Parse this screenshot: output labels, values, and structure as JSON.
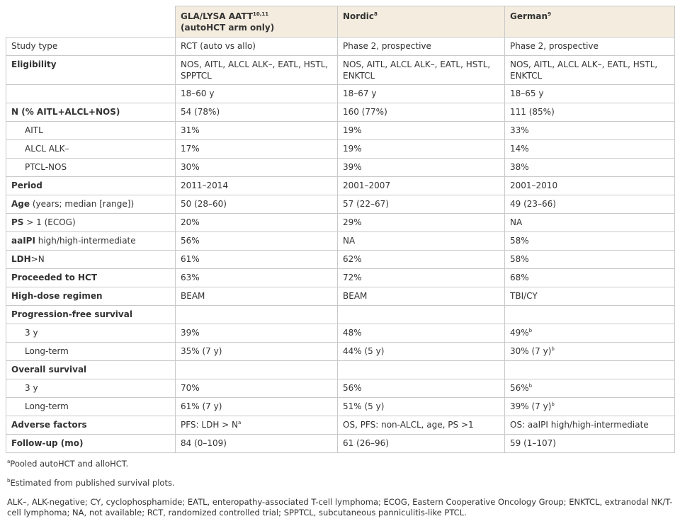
{
  "table": {
    "columns": [
      {
        "text": "GLA/LYSA AATT",
        "sup": "10,11",
        "sub": "(autoHCT arm only)"
      },
      {
        "text": "Nordic",
        "sup": "8"
      },
      {
        "text": "German",
        "sup": "9"
      }
    ],
    "rows": [
      {
        "label": {
          "text": "Study type"
        },
        "cells": [
          "RCT (auto vs allo)",
          "Phase 2, prospective",
          "Phase 2, prospective"
        ]
      },
      {
        "label": {
          "bold": "Eligibility"
        },
        "cells": [
          "NOS, AITL, ALCL ALK–, EATL, HSTL, SPPTCL",
          "NOS, AITL, ALCL ALK–, EATL, HSTL, ENKTCL",
          "NOS, AITL, ALCL ALK–, EATL, HSTL, ENKTCL"
        ]
      },
      {
        "cells": [
          "18–60 y",
          "18–67 y",
          "18–65 y"
        ]
      },
      {
        "label": {
          "bold": "N (% AITL+ALCL+NOS)"
        },
        "cells": [
          "54 (78%)",
          "160 (77%)",
          "111 (85%)"
        ]
      },
      {
        "label": {
          "text": "AITL",
          "indent": true
        },
        "cells": [
          "31%",
          "19%",
          "33%"
        ]
      },
      {
        "label": {
          "text": "ALCL ALK–",
          "indent": true
        },
        "cells": [
          "17%",
          "19%",
          "14%"
        ]
      },
      {
        "label": {
          "text": "PTCL-NOS",
          "indent": true
        },
        "cells": [
          "30%",
          "39%",
          "38%"
        ]
      },
      {
        "label": {
          "bold": "Period"
        },
        "cells": [
          "2011–2014",
          "2001–2007",
          "2001–2010"
        ]
      },
      {
        "label": {
          "bold": "Age",
          "text": " (years; median [range])"
        },
        "cells": [
          "50 (28–60)",
          "57 (22–67)",
          "49 (23–66)"
        ]
      },
      {
        "label": {
          "bold": "PS",
          "text": " > 1 (ECOG)"
        },
        "cells": [
          "20%",
          "29%",
          "NA"
        ]
      },
      {
        "label": {
          "bold": "aaIPI",
          "text": " high/high-intermediate"
        },
        "cells": [
          "56%",
          "NA",
          "58%"
        ]
      },
      {
        "label": {
          "bold": "LDH",
          "text": ">N"
        },
        "cells": [
          "61%",
          "62%",
          "58%"
        ]
      },
      {
        "label": {
          "bold": "Proceeded to HCT"
        },
        "cells": [
          "63%",
          "72%",
          "68%"
        ]
      },
      {
        "label": {
          "bold": "High-dose regimen"
        },
        "cells": [
          "BEAM",
          "BEAM",
          "TBI/CY"
        ]
      },
      {
        "label": {
          "bold": "Progression-free survival"
        }
      },
      {
        "label": {
          "text": "3 y",
          "indent": true
        },
        "cells": [
          "39%",
          "48%",
          {
            "text": "49%",
            "sup": "b"
          }
        ]
      },
      {
        "label": {
          "text": "Long-term",
          "indent": true
        },
        "cells": [
          "35% (7 y)",
          "44% (5 y)",
          {
            "text": "30% (7 y)",
            "sup": "b"
          }
        ]
      },
      {
        "label": {
          "bold": "Overall survival"
        }
      },
      {
        "label": {
          "text": "3 y",
          "indent": true
        },
        "cells": [
          "70%",
          "56%",
          {
            "text": "56%",
            "sup": "b"
          }
        ]
      },
      {
        "label": {
          "text": "Long-term",
          "indent": true
        },
        "cells": [
          "61% (7 y)",
          "51% (5 y)",
          {
            "text": "39% (7 y)",
            "sup": "b"
          }
        ]
      },
      {
        "label": {
          "bold": "Adverse factors"
        },
        "cells": [
          {
            "text": "PFS: LDH > N",
            "sup": "a"
          },
          "OS, PFS: non-ALCL, age, PS >1",
          "OS: aaIPI high/high-intermediate"
        ]
      },
      {
        "label": {
          "bold": "Follow-up (mo)"
        },
        "cells": [
          "84 (0–109)",
          "61 (26–96)",
          "59 (1–107)"
        ]
      }
    ]
  },
  "footnotes": [
    {
      "sup": "a",
      "text": "Pooled autoHCT and alloHCT."
    },
    {
      "sup": "b",
      "text": "Estimated from published survival plots."
    }
  ],
  "abbreviations": "ALK–, ALK-negative; CY, cyclophosphamide; EATL, enteropathy-associated T-cell lymphoma; ECOG, Eastern Cooperative Oncology Group; ENKTCL, extranodal NK/T-cell lymphoma; NA, not available; RCT, randomized controlled trial; SPPTCL, subcutaneous panniculitis-like PTCL."
}
